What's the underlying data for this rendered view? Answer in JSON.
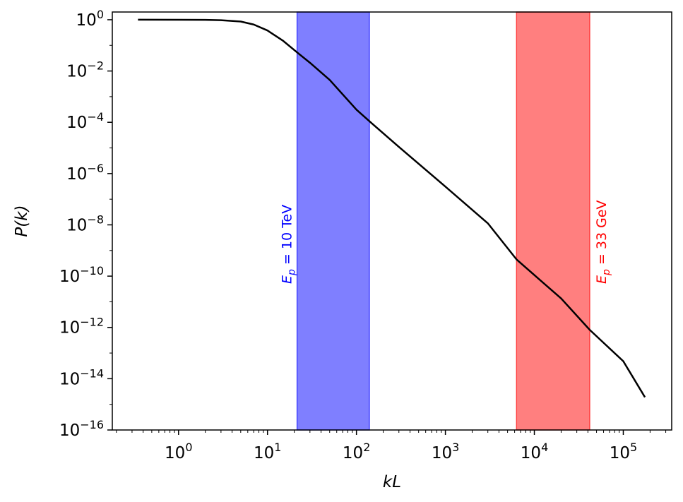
{
  "chart_data": {
    "type": "line",
    "title": "",
    "xlabel": "kL",
    "ylabel": "P(k)",
    "xscale": "log",
    "yscale": "log",
    "xlim": [
      0.18,
      350000
    ],
    "ylim": [
      1e-16,
      2
    ],
    "grid": false,
    "x_tick_labels": [
      {
        "base": "10",
        "exp": "0"
      },
      {
        "base": "10",
        "exp": "1"
      },
      {
        "base": "10",
        "exp": "2"
      },
      {
        "base": "10",
        "exp": "3"
      },
      {
        "base": "10",
        "exp": "4"
      },
      {
        "base": "10",
        "exp": "5"
      }
    ],
    "y_tick_labels": [
      {
        "base": "10",
        "exp": "0"
      },
      {
        "base": "10",
        "exp": "−2"
      },
      {
        "base": "10",
        "exp": "−4"
      },
      {
        "base": "10",
        "exp": "−6"
      },
      {
        "base": "10",
        "exp": "−8"
      },
      {
        "base": "10",
        "exp": "−10"
      },
      {
        "base": "10",
        "exp": "−12"
      },
      {
        "base": "10",
        "exp": "−14"
      },
      {
        "base": "10",
        "exp": "−16"
      }
    ],
    "series": [
      {
        "color": "#000000",
        "x": [
          0.35,
          1,
          2,
          3,
          5,
          7,
          10,
          15,
          22,
          30,
          50,
          100,
          150,
          300,
          1000,
          3000,
          6300,
          10000,
          20000,
          42000,
          100000,
          175000
        ],
        "y": [
          1.0,
          0.999,
          0.99,
          0.96,
          0.85,
          0.65,
          0.38,
          0.15,
          0.05,
          0.021,
          0.0045,
          0.00031,
          8.9e-05,
          1.1e-05,
          3.1e-07,
          1.15e-08,
          4.5e-10,
          1.1e-10,
          1.35e-11,
          8e-13,
          4.8e-14,
          1.9e-15
        ]
      }
    ],
    "bands": [
      {
        "x_range": [
          21.5,
          140
        ],
        "color": "#0000ff",
        "opacity": 0.5,
        "label_prefix": "E",
        "label_sub": "p",
        "label_rest": " = 10 TeV",
        "label_color": "#0000ff"
      },
      {
        "x_range": [
          6300,
          42000
        ],
        "color": "#ff0000",
        "opacity": 0.5,
        "label_prefix": "E",
        "label_sub": "p",
        "label_rest": " = 33 GeV",
        "label_color": "#ff0000"
      }
    ]
  }
}
